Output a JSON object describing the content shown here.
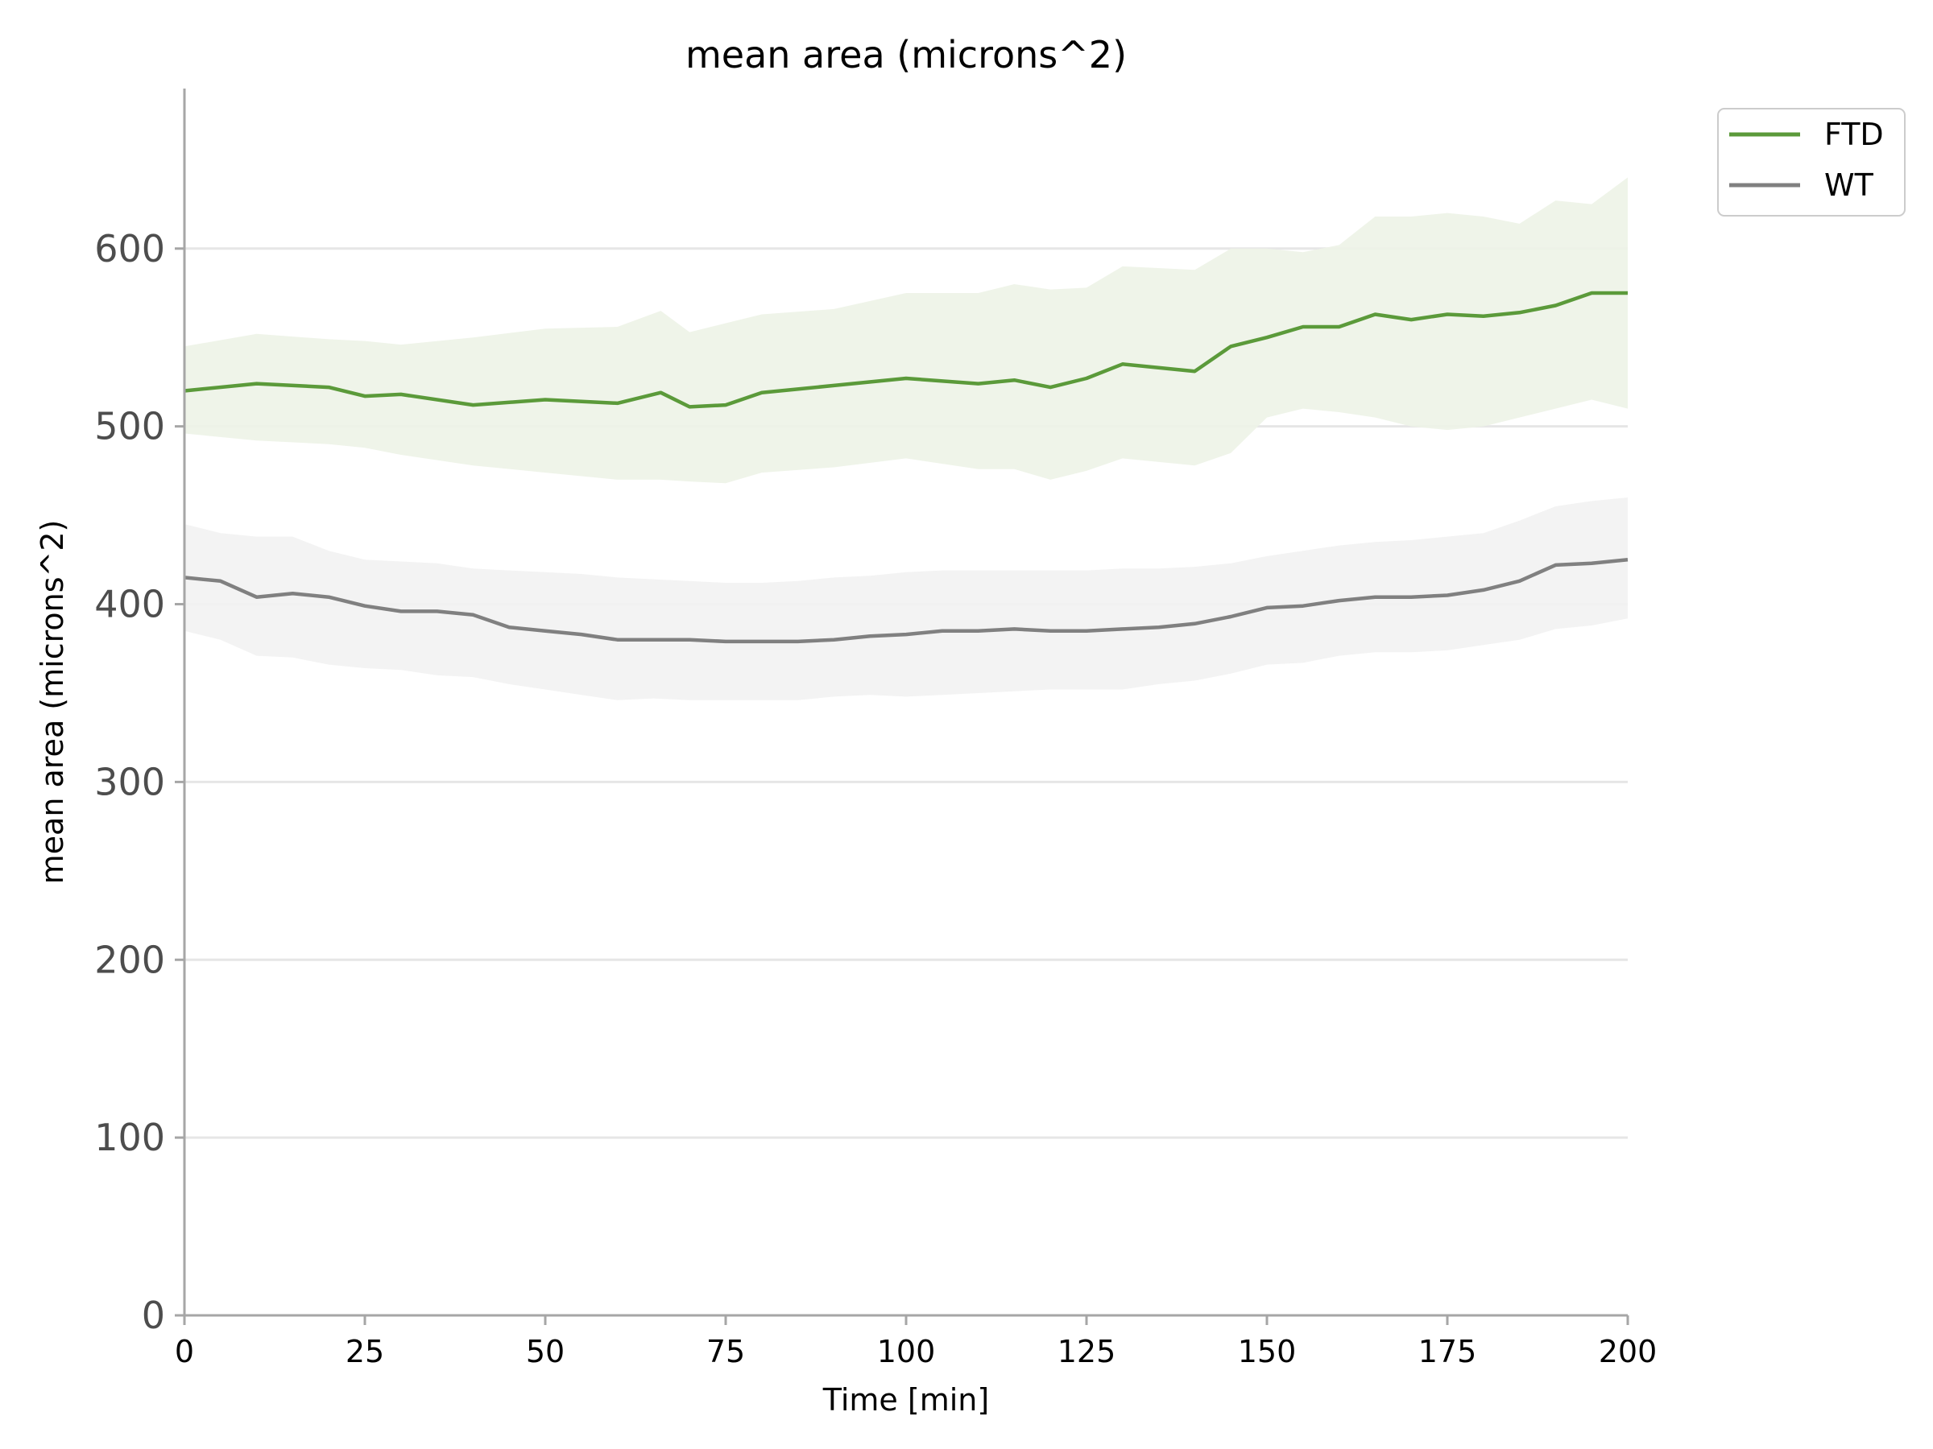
{
  "chart_data": {
    "type": "line",
    "title": "mean area (microns^2)",
    "xlabel": "Time [min]",
    "ylabel": "mean area (microns^2)",
    "xlim": [
      0,
      200
    ],
    "ylim": [
      0,
      690
    ],
    "xticks": [
      0,
      25,
      50,
      75,
      100,
      125,
      150,
      175,
      200
    ],
    "xtick_labels": [
      "0",
      "25",
      "50",
      "75",
      "100",
      "125",
      "150",
      "175",
      "200"
    ],
    "yticks": [
      0,
      100,
      200,
      300,
      400,
      500,
      600
    ],
    "ytick_labels": [
      "0",
      "100",
      "200",
      "300",
      "400",
      "500",
      "600"
    ],
    "grid": "horizontal",
    "legend_position": "top-right outside",
    "series": [
      {
        "name": "FTD",
        "color": "#5b9a3a",
        "band_color": "#edf3e7",
        "x": [
          0,
          10,
          20,
          25,
          30,
          40,
          50,
          60,
          66,
          70,
          75,
          80,
          90,
          100,
          110,
          115,
          120,
          125,
          130,
          140,
          145,
          150,
          155,
          160,
          165,
          170,
          175,
          180,
          185,
          190,
          195,
          200
        ],
        "mean": [
          520,
          524,
          522,
          517,
          518,
          512,
          515,
          513,
          519,
          511,
          512,
          519,
          523,
          527,
          524,
          526,
          522,
          527,
          535,
          531,
          545,
          550,
          556,
          556,
          563,
          560,
          563,
          562,
          564,
          568,
          575,
          575
        ],
        "upper": [
          545,
          552,
          549,
          548,
          546,
          550,
          555,
          556,
          565,
          553,
          558,
          563,
          566,
          575,
          575,
          580,
          577,
          578,
          590,
          588,
          600,
          600,
          598,
          602,
          618,
          618,
          620,
          618,
          614,
          627,
          625,
          640
        ],
        "lower": [
          496,
          492,
          490,
          488,
          484,
          478,
          474,
          470,
          470,
          469,
          468,
          474,
          477,
          482,
          476,
          476,
          470,
          475,
          482,
          478,
          485,
          505,
          510,
          508,
          505,
          500,
          498,
          500,
          505,
          510,
          515,
          510
        ]
      },
      {
        "name": "WT",
        "color": "#808080",
        "band_color": "#f2f2f2",
        "x": [
          0,
          5,
          10,
          15,
          20,
          25,
          30,
          35,
          40,
          45,
          50,
          55,
          60,
          65,
          70,
          75,
          80,
          85,
          90,
          95,
          100,
          105,
          110,
          115,
          120,
          125,
          130,
          135,
          140,
          145,
          150,
          155,
          160,
          165,
          170,
          175,
          180,
          185,
          190,
          195,
          200
        ],
        "mean": [
          415,
          413,
          404,
          406,
          404,
          399,
          396,
          396,
          394,
          387,
          385,
          383,
          380,
          380,
          380,
          379,
          379,
          379,
          380,
          382,
          383,
          385,
          385,
          386,
          385,
          385,
          386,
          387,
          389,
          393,
          398,
          399,
          402,
          404,
          404,
          405,
          408,
          413,
          422,
          423,
          425
        ],
        "upper": [
          445,
          440,
          438,
          438,
          430,
          425,
          424,
          423,
          420,
          419,
          418,
          417,
          415,
          414,
          413,
          412,
          412,
          413,
          415,
          416,
          418,
          419,
          419,
          419,
          419,
          419,
          420,
          420,
          421,
          423,
          427,
          430,
          433,
          435,
          436,
          438,
          440,
          447,
          455,
          458,
          460
        ],
        "lower": [
          385,
          380,
          371,
          370,
          366,
          364,
          363,
          360,
          359,
          355,
          352,
          349,
          346,
          347,
          346,
          346,
          346,
          346,
          348,
          349,
          348,
          349,
          350,
          351,
          352,
          352,
          352,
          355,
          357,
          361,
          366,
          367,
          371,
          373,
          373,
          374,
          377,
          380,
          386,
          388,
          392
        ]
      }
    ]
  }
}
